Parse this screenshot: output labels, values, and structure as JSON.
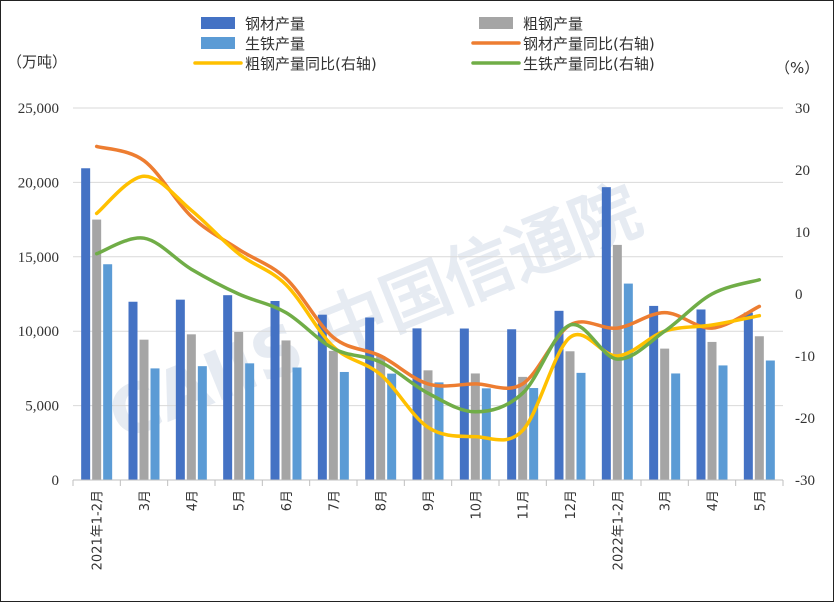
{
  "watermark": "CAIIS 中国信通院",
  "units": {
    "left": "（万吨）",
    "right": "（%）"
  },
  "legend": [
    {
      "label": "钢材产量",
      "kind": "bar",
      "color": "#4472C4"
    },
    {
      "label": "粗钢产量",
      "kind": "bar",
      "color": "#A5A5A5"
    },
    {
      "label": "生铁产量",
      "kind": "bar",
      "color": "#5B9BD5"
    },
    {
      "label": "钢材产量同比(右轴)",
      "kind": "line",
      "color": "#ED7D31"
    },
    {
      "label": "粗钢产量同比(右轴)",
      "kind": "line",
      "color": "#FFC000"
    },
    {
      "label": "生铁产量同比(右轴)",
      "kind": "line",
      "color": "#70AD47"
    }
  ],
  "chart_data": {
    "type": "bar",
    "categories": [
      "2021年1-2月",
      "3月",
      "4月",
      "5月",
      "6月",
      "7月",
      "8月",
      "9月",
      "10月",
      "11月",
      "12月",
      "2022年1-2月",
      "3月",
      "4月",
      "5月"
    ],
    "ylim_left": [
      0,
      25000
    ],
    "yticks_left": [
      "0",
      "5,000",
      "10,000",
      "15,000",
      "20,000",
      "25,000"
    ],
    "ylim_right": [
      -30,
      30
    ],
    "yticks_right": [
      "-30",
      "-20",
      "-10",
      "0",
      "10",
      "20",
      "30"
    ],
    "grid": true,
    "legend_position": "top",
    "series": [
      {
        "name": "钢材产量",
        "type": "bar",
        "axis": "left",
        "values": [
          20950,
          11980,
          12120,
          12420,
          12030,
          11110,
          10920,
          10190,
          10180,
          10130,
          11370,
          19680,
          11700,
          11460,
          11250
        ]
      },
      {
        "name": "粗钢产量",
        "type": "bar",
        "axis": "left",
        "values": [
          17500,
          9430,
          9790,
          9950,
          9380,
          8680,
          8330,
          7370,
          7160,
          6930,
          8650,
          15800,
          8830,
          9280,
          9660
        ]
      },
      {
        "name": "生铁产量",
        "type": "bar",
        "axis": "left",
        "values": [
          14500,
          7500,
          7650,
          7840,
          7560,
          7260,
          7150,
          6560,
          6160,
          6180,
          7200,
          13200,
          7160,
          7700,
          8030
        ]
      },
      {
        "name": "钢材产量同比(右轴)",
        "type": "line",
        "axis": "right",
        "values": [
          23.8,
          21.5,
          12.5,
          7.2,
          2.5,
          -7,
          -10,
          -14.5,
          -14.5,
          -14.5,
          -5,
          -5.5,
          -3,
          -5.5,
          -2
        ]
      },
      {
        "name": "粗钢产量同比(右轴)",
        "type": "line",
        "axis": "right",
        "values": [
          13,
          19,
          13.5,
          6.5,
          1.5,
          -8.5,
          -13,
          -21.5,
          -23,
          -22,
          -7,
          -10,
          -6,
          -5,
          -3.5
        ]
      },
      {
        "name": "生铁产量同比(右轴)",
        "type": "line",
        "axis": "right",
        "values": [
          6.5,
          9,
          4,
          0,
          -3,
          -8.8,
          -11,
          -16,
          -19,
          -16,
          -5,
          -10.5,
          -6,
          0,
          2.3
        ]
      }
    ]
  }
}
